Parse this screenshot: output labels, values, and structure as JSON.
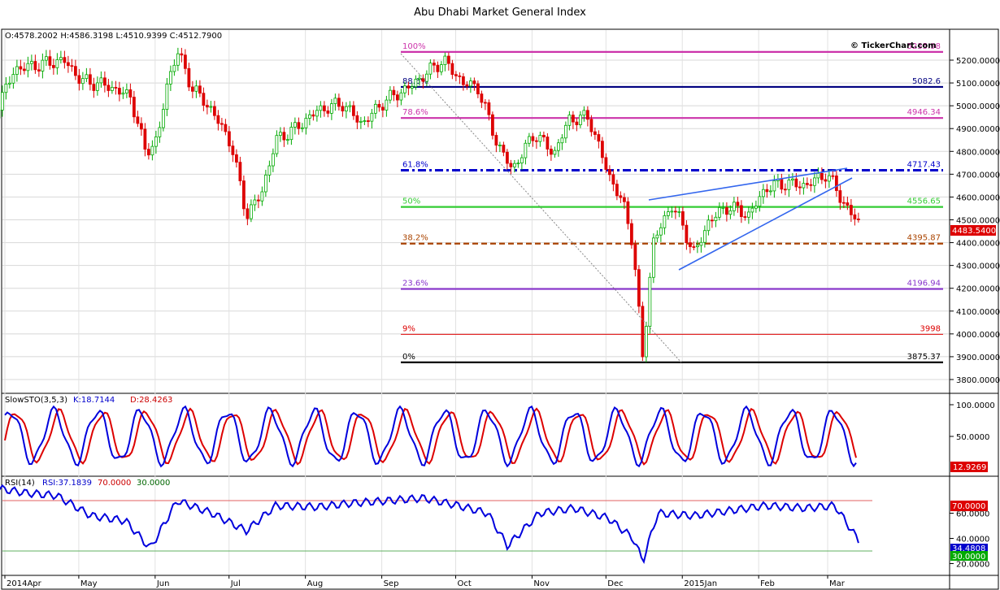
{
  "title": "Abu Dhabi Market General Index",
  "watermark": "© TickerChart.com",
  "ohlc_text": "O:4578.2002 H:4586.3198 L:4510.9399 C:4512.7900",
  "last_price_label": "4483.5400",
  "colors": {
    "up": "#00aa00",
    "down": "#dd0000",
    "stoch_k": "#0000dd",
    "stoch_d": "#dd0000",
    "rsi": "#0000dd"
  },
  "chart_data": [
    {
      "type": "candlestick",
      "title": "Abu Dhabi Market General Index",
      "x_tick_labels": [
        "2014Apr",
        "May",
        "Jun",
        "Jul",
        "Aug",
        "Sep",
        "Oct",
        "Nov",
        "Dec",
        "2015Jan",
        "Feb",
        "Mar"
      ],
      "y_tick_labels": [
        "5200.0000",
        "5100.0000",
        "5000.0000",
        "4900.0000",
        "4800.0000",
        "4700.0000",
        "4600.0000",
        "4500.0000",
        "4400.0000",
        "4300.0000",
        "4200.0000",
        "4100.0000",
        "4000.0000",
        "3900.0000",
        "3800.0000"
      ],
      "ylim": [
        3745,
        5300
      ],
      "close_path": [
        [
          "2014-03-28",
          4970
        ],
        [
          "2014-04-05",
          5160
        ],
        [
          "2014-04-15",
          5180
        ],
        [
          "2014-04-25",
          5200
        ],
        [
          "2014-05-02",
          5110
        ],
        [
          "2014-05-12",
          5090
        ],
        [
          "2014-05-22",
          5040
        ],
        [
          "2014-05-28",
          4800
        ],
        [
          "2014-06-02",
          4850
        ],
        [
          "2014-06-06",
          5100
        ],
        [
          "2014-06-10",
          5240
        ],
        [
          "2014-06-16",
          5080
        ],
        [
          "2014-06-24",
          4980
        ],
        [
          "2014-07-02",
          4830
        ],
        [
          "2014-07-08",
          4520
        ],
        [
          "2014-07-14",
          4610
        ],
        [
          "2014-07-20",
          4850
        ],
        [
          "2014-07-28",
          4900
        ],
        [
          "2014-08-06",
          4980
        ],
        [
          "2014-08-16",
          5010
        ],
        [
          "2014-08-24",
          4920
        ],
        [
          "2014-09-02",
          5020
        ],
        [
          "2014-09-12",
          5080
        ],
        [
          "2014-09-20",
          5150
        ],
        [
          "2014-09-26",
          5200
        ],
        [
          "2014-10-04",
          5100
        ],
        [
          "2014-10-10",
          5080
        ],
        [
          "2014-10-18",
          4830
        ],
        [
          "2014-10-24",
          4720
        ],
        [
          "2014-11-02",
          4880
        ],
        [
          "2014-11-10",
          4790
        ],
        [
          "2014-11-16",
          4940
        ],
        [
          "2014-11-24",
          4950
        ],
        [
          "2014-12-02",
          4700
        ],
        [
          "2014-12-08",
          4570
        ],
        [
          "2014-12-12",
          4400
        ],
        [
          "2014-12-16",
          3880
        ],
        [
          "2014-12-20",
          4400
        ],
        [
          "2014-12-28",
          4570
        ],
        [
          "2015-01-06",
          4350
        ],
        [
          "2015-01-12",
          4500
        ],
        [
          "2015-01-20",
          4560
        ],
        [
          "2015-01-28",
          4520
        ],
        [
          "2015-02-04",
          4640
        ],
        [
          "2015-02-12",
          4660
        ],
        [
          "2015-02-20",
          4650
        ],
        [
          "2015-02-28",
          4700
        ],
        [
          "2015-03-04",
          4650
        ],
        [
          "2015-03-08",
          4560
        ],
        [
          "2015-03-14",
          4484
        ]
      ],
      "fibonacci": [
        {
          "label": "100%",
          "value": "5235.98",
          "color": "#cc33aa"
        },
        {
          "label": "88.6%",
          "value": "5082.6",
          "color": "#000080"
        },
        {
          "label": "78.6%",
          "value": "4946.34",
          "color": "#cc33aa"
        },
        {
          "label": "61.8%",
          "value": "4717.43",
          "color": "#0000cc"
        },
        {
          "label": "50%",
          "value": "4556.65",
          "color": "#33cc33"
        },
        {
          "label": "38.2%",
          "value": "4395.87",
          "color": "#aa4400"
        },
        {
          "label": "23.6%",
          "value": "4196.94",
          "color": "#8833cc"
        },
        {
          "label": "9%",
          "value": "3998",
          "color": "#dd0000"
        },
        {
          "label": "0%",
          "value": "3875.37",
          "color": "#000000"
        }
      ]
    },
    {
      "type": "line",
      "indicator": "SlowSTO(3,5,3)",
      "k_text": "K:18.7144",
      "d_text": "D:28.4263",
      "last_value_label": "12.9269",
      "y_tick_labels": [
        "100.0000",
        "50.0000"
      ],
      "ylim": [
        0,
        105
      ]
    },
    {
      "type": "line",
      "indicator": "RSI(14)",
      "rsi_text": "RSI:37.1839",
      "overbought_text": "70.0000",
      "oversold_text": "30.0000",
      "y_tick_labels": [
        "60.0000",
        "40.0000",
        "20.0000"
      ],
      "right_labels": [
        "70.0000",
        "34.4808",
        "30.0000"
      ],
      "ylim": [
        15,
        85
      ],
      "series": [
        {
          "x": [
            "2014-03-28",
            "2014-04-10",
            "2014-04-22",
            "2014-05-06",
            "2014-05-20",
            "2014-05-30",
            "2014-06-10",
            "2014-06-24",
            "2014-07-08",
            "2014-07-20",
            "2014-08-06",
            "2014-08-20",
            "2014-09-04",
            "2014-09-18",
            "2014-10-02",
            "2014-10-14",
            "2014-10-22",
            "2014-11-04",
            "2014-11-18",
            "2014-12-02",
            "2014-12-12",
            "2014-12-16",
            "2014-12-22",
            "2015-01-06",
            "2015-01-20",
            "2015-02-04",
            "2015-02-20",
            "2015-03-04",
            "2015-03-14"
          ],
          "values": [
            80,
            76,
            74,
            58,
            54,
            32,
            70,
            60,
            46,
            66,
            65,
            68,
            70,
            72,
            66,
            60,
            34,
            60,
            64,
            56,
            40,
            22,
            60,
            58,
            62,
            66,
            64,
            66,
            37
          ]
        }
      ]
    }
  ]
}
